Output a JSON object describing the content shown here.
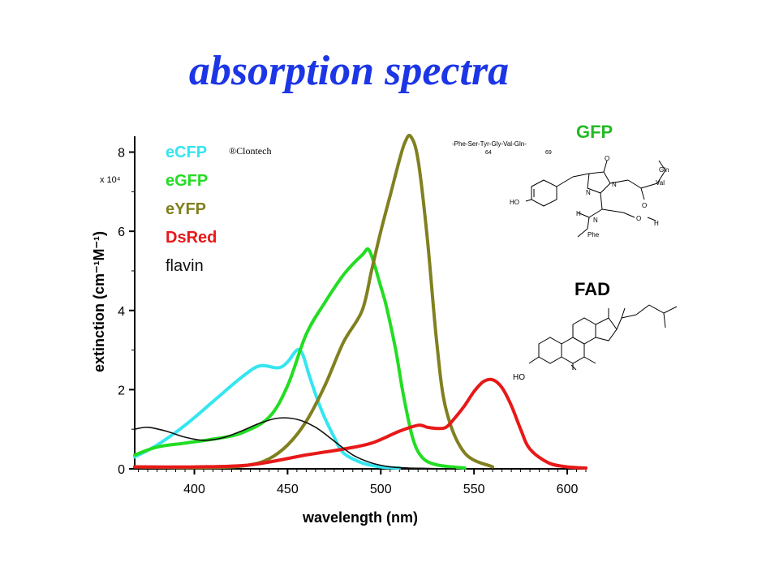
{
  "slide": {
    "title": "absorption spectra"
  },
  "colors": {
    "title": "#1c36e6",
    "ecfp": "#33e6f0",
    "egfp": "#22dd22",
    "eyfp": "#808020",
    "dsred": "#e81818",
    "flavin": "#111111"
  },
  "chart_data": {
    "type": "line",
    "xlabel": "wavelength (nm)",
    "ylabel": "extinction (cm⁻¹M⁻¹)",
    "multiplier": "x 10⁴",
    "xlim": [
      368,
      610
    ],
    "ylim": [
      0,
      8.4
    ],
    "x_ticks": [
      400,
      450,
      500,
      550,
      600
    ],
    "y_ticks": [
      0,
      2,
      4,
      6,
      8
    ],
    "legend_position": "top-left",
    "note": "®Clontech",
    "series": [
      {
        "name": "eCFP",
        "color": "#33e6f0",
        "x": [
          368,
          380,
          395,
          410,
          425,
          435,
          445,
          450,
          455,
          458,
          462,
          468,
          475,
          480,
          490,
          500,
          510
        ],
        "y": [
          0.3,
          0.6,
          1.1,
          1.7,
          2.3,
          2.6,
          2.55,
          2.7,
          3.0,
          2.9,
          2.3,
          1.5,
          0.8,
          0.4,
          0.15,
          0.05,
          0.02
        ]
      },
      {
        "name": "eGFP",
        "color": "#22dd22",
        "x": [
          368,
          380,
          395,
          410,
          425,
          440,
          450,
          460,
          470,
          480,
          490,
          494,
          500,
          503,
          508,
          512,
          517,
          522,
          530,
          545
        ],
        "y": [
          0.35,
          0.55,
          0.65,
          0.75,
          0.9,
          1.3,
          2.1,
          3.4,
          4.2,
          4.9,
          5.4,
          5.5,
          4.6,
          4.1,
          3.0,
          1.9,
          0.8,
          0.3,
          0.1,
          0.02
        ]
      },
      {
        "name": "eYFP",
        "color": "#808020",
        "x": [
          368,
          400,
          420,
          430,
          440,
          450,
          460,
          470,
          480,
          490,
          495,
          500,
          505,
          510,
          513,
          516,
          520,
          525,
          530,
          535,
          545,
          560
        ],
        "y": [
          0.05,
          0.03,
          0.05,
          0.1,
          0.25,
          0.6,
          1.2,
          2.1,
          3.2,
          4.0,
          5.0,
          6.0,
          6.9,
          7.8,
          8.25,
          8.4,
          7.8,
          5.8,
          3.2,
          1.5,
          0.4,
          0.05
        ]
      },
      {
        "name": "DsRed",
        "color": "#e81818",
        "x": [
          368,
          400,
          430,
          460,
          480,
          495,
          510,
          520,
          525,
          530,
          535,
          540,
          545,
          550,
          555,
          560,
          565,
          570,
          575,
          580,
          590,
          600,
          610
        ],
        "y": [
          0.05,
          0.05,
          0.1,
          0.35,
          0.5,
          0.65,
          0.95,
          1.1,
          1.05,
          1.02,
          1.05,
          1.3,
          1.6,
          1.95,
          2.2,
          2.25,
          2.05,
          1.6,
          1.0,
          0.5,
          0.15,
          0.05,
          0.02
        ]
      },
      {
        "name": "flavin",
        "color": "#111111",
        "x": [
          368,
          375,
          385,
          395,
          405,
          415,
          425,
          435,
          445,
          455,
          465,
          475,
          485,
          495,
          505,
          515,
          525,
          540
        ],
        "y": [
          1.0,
          1.05,
          0.95,
          0.8,
          0.72,
          0.78,
          0.95,
          1.15,
          1.28,
          1.25,
          1.05,
          0.7,
          0.35,
          0.15,
          0.05,
          0.02,
          0.01,
          0.0
        ]
      }
    ]
  },
  "annotations": {
    "gfp": {
      "label": "GFP",
      "sequence": "-Phe-Ser-Tyr-Gly-Val-Gln-",
      "seq_start": "64",
      "seq_end": "69",
      "atoms": {
        "ho": "HO",
        "n1": "N",
        "n2": "N",
        "o1": "O",
        "o2": "O",
        "o3": "O",
        "h1": "H",
        "h2": "H",
        "nh": "N",
        "gln": "Gln",
        "val": "Val",
        "phe": "Phe"
      }
    },
    "fad": {
      "label": "FAD",
      "atoms": {
        "ho": "HO"
      }
    }
  }
}
